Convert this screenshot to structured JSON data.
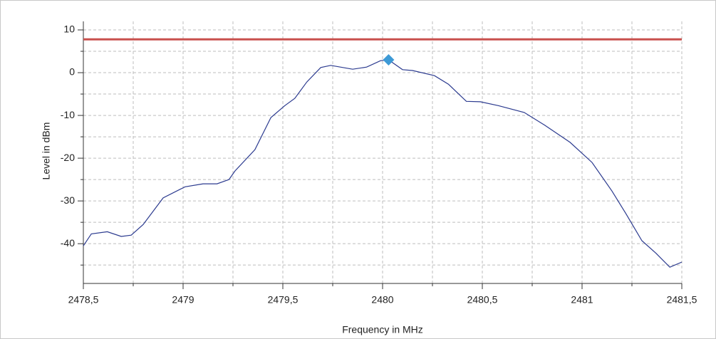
{
  "chart_data": {
    "type": "line",
    "xlabel": "Frequency in MHz",
    "ylabel": "Level in dBm",
    "x": [
      2478.5,
      2478.54,
      2478.62,
      2478.69,
      2478.74,
      2478.8,
      2478.9,
      2479.01,
      2479.1,
      2479.17,
      2479.23,
      2479.26,
      2479.36,
      2479.44,
      2479.51,
      2479.56,
      2479.62,
      2479.69,
      2479.74,
      2479.85,
      2479.92,
      2479.99,
      2480.03,
      2480.1,
      2480.15,
      2480.26,
      2480.33,
      2480.42,
      2480.49,
      2480.58,
      2480.71,
      2480.81,
      2480.94,
      2481.05,
      2481.15,
      2481.22,
      2481.3,
      2481.37,
      2481.44,
      2481.5
    ],
    "series": [
      {
        "color": "#2b3a8f",
        "values": [
          -40.5,
          -37.7,
          -37.2,
          -38.3,
          -38,
          -35.5,
          -29.3,
          -26.7,
          -26,
          -26,
          -25,
          -23,
          -18,
          -10.5,
          -7.7,
          -6,
          -2.2,
          1.2,
          1.7,
          0.8,
          1.3,
          2.8,
          3,
          0.7,
          0.5,
          -0.7,
          -2.7,
          -6.7,
          -6.8,
          -7.7,
          -9.3,
          -12.2,
          -16.3,
          -21,
          -27.7,
          -33,
          -39.3,
          -42.2,
          -45.5,
          -44.3
        ]
      }
    ],
    "limit": 7.8,
    "limit_color": "#c8504d",
    "marker": {
      "x": 2480.03,
      "y": 3,
      "color": "#3d9ad6"
    },
    "xlim": [
      2478.5,
      2481.5
    ],
    "xticks": [
      {
        "value": 2478.5,
        "label": "2478,5"
      },
      2479,
      {
        "value": 2479.5,
        "label": "2479,5"
      },
      2480,
      {
        "value": 2480.5,
        "label": "2480,5"
      },
      2481,
      {
        "value": 2481.5,
        "label": "2481,5"
      }
    ],
    "xminor": [
      2478.75,
      2479.25,
      2479.75,
      2480.25,
      2480.75,
      2481.25
    ],
    "ylim": [
      -49.3,
      12
    ],
    "yticks": [
      -40,
      -30,
      -20,
      -10,
      0,
      10
    ],
    "yminor": [
      -45,
      -35,
      -25,
      -15,
      -5,
      5
    ],
    "grid": true
  }
}
